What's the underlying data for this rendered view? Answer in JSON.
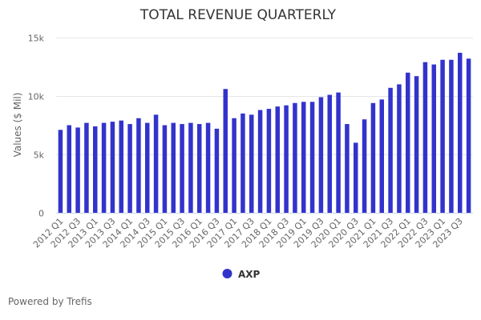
{
  "chart_data": {
    "type": "bar",
    "title": "TOTAL REVENUE QUARTERLY",
    "xlabel": "",
    "ylabel": "Values ($ Mil)",
    "ylim": [
      0,
      15000
    ],
    "yticks": [
      0,
      5000,
      10000,
      15000
    ],
    "ytick_labels": [
      "0",
      "5k",
      "10k",
      "15k"
    ],
    "grid": true,
    "legend_position": "bottom-center",
    "categories": [
      "2012 Q1",
      "2012 Q2",
      "2012 Q3",
      "2012 Q4",
      "2013 Q1",
      "2013 Q2",
      "2013 Q3",
      "2013 Q4",
      "2014 Q1",
      "2014 Q2",
      "2014 Q3",
      "2014 Q4",
      "2015 Q1",
      "2015 Q2",
      "2015 Q3",
      "2015 Q4",
      "2016 Q1",
      "2016 Q2",
      "2016 Q3",
      "2016 Q4",
      "2017 Q1",
      "2017 Q2",
      "2017 Q3",
      "2017 Q4",
      "2018 Q1",
      "2018 Q2",
      "2018 Q3",
      "2018 Q4",
      "2019 Q1",
      "2019 Q2",
      "2019 Q3",
      "2019 Q4",
      "2020 Q1",
      "2020 Q2",
      "2020 Q3",
      "2020 Q4",
      "2021 Q1",
      "2021 Q2",
      "2021 Q3",
      "2021 Q4",
      "2022 Q1",
      "2022 Q2",
      "2022 Q3",
      "2022 Q4",
      "2023 Q1",
      "2023 Q2",
      "2023 Q3",
      "2023 Q4"
    ],
    "tick_labels_shown": [
      "2012 Q1",
      "2012 Q3",
      "2013 Q1",
      "2013 Q3",
      "2014 Q1",
      "2014 Q3",
      "2015 Q1",
      "2015 Q3",
      "2016 Q1",
      "2016 Q3",
      "2017 Q1",
      "2017 Q3",
      "2018 Q1",
      "2018 Q3",
      "2019 Q1",
      "2019 Q3",
      "2020 Q1",
      "2020 Q3",
      "2021 Q1",
      "2021 Q3",
      "2022 Q1",
      "2022 Q3",
      "2023 Q1",
      "2023 Q3"
    ],
    "series": [
      {
        "name": "AXP",
        "color": "#3333cc",
        "values": [
          7100,
          7500,
          7300,
          7700,
          7400,
          7700,
          7800,
          7900,
          7600,
          8100,
          7700,
          8400,
          7500,
          7700,
          7600,
          7700,
          7600,
          7700,
          7200,
          10600,
          8100,
          8500,
          8400,
          8800,
          8900,
          9100,
          9200,
          9400,
          9500,
          9500,
          9900,
          10100,
          10300,
          7600,
          6000,
          8000,
          9400,
          9700,
          10700,
          11000,
          12000,
          11700,
          12900,
          12700,
          13100,
          13100,
          13700,
          13200
        ]
      }
    ]
  },
  "footer": {
    "credit": "Powered by Trefis"
  }
}
